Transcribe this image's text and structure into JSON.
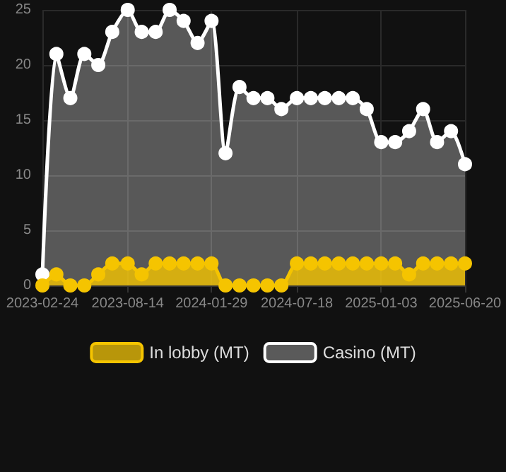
{
  "chart_data": {
    "type": "area",
    "x": [
      "2023-02-24",
      "2023-03-24",
      "2023-04-21",
      "2023-05-19",
      "2023-06-16",
      "2023-07-14",
      "2023-08-14",
      "2023-09-11",
      "2023-10-09",
      "2023-11-06",
      "2023-12-04",
      "2024-01-01",
      "2024-01-29",
      "2024-02-26",
      "2024-03-25",
      "2024-04-22",
      "2024-05-20",
      "2024-06-17",
      "2024-07-18",
      "2024-08-15",
      "2024-09-12",
      "2024-10-10",
      "2024-11-07",
      "2024-12-05",
      "2025-01-03",
      "2025-01-31",
      "2025-02-28",
      "2025-03-28",
      "2025-04-25",
      "2025-05-23",
      "2025-06-20"
    ],
    "series": [
      {
        "name": "In lobby (MT)",
        "color": "#f5c400",
        "values": [
          0,
          1,
          0,
          0,
          1,
          2,
          2,
          1,
          2,
          2,
          2,
          2,
          2,
          0,
          0,
          0,
          0,
          0,
          2,
          2,
          2,
          2,
          2,
          2,
          2,
          2,
          1,
          2,
          2,
          2,
          2
        ]
      },
      {
        "name": "Casino (MT)",
        "color": "#ffffff",
        "values": [
          1,
          21,
          17,
          21,
          20,
          23,
          25,
          23,
          23,
          25,
          24,
          22,
          24,
          12,
          18,
          17,
          17,
          16,
          17,
          17,
          17,
          17,
          17,
          16,
          13,
          13,
          14,
          16,
          13,
          14,
          11
        ]
      }
    ],
    "xlim": [
      "2023-02-24",
      "2025-06-20"
    ],
    "xticks": [
      "2023-02-24",
      "2023-08-14",
      "2024-01-29",
      "2024-07-18",
      "2025-01-03",
      "2025-06-20"
    ],
    "ylim": [
      0,
      25
    ],
    "yticks": [
      0,
      5,
      10,
      15,
      20,
      25
    ],
    "grid": true,
    "legend": "bottom",
    "marker": "circle",
    "line_style": "solid"
  }
}
